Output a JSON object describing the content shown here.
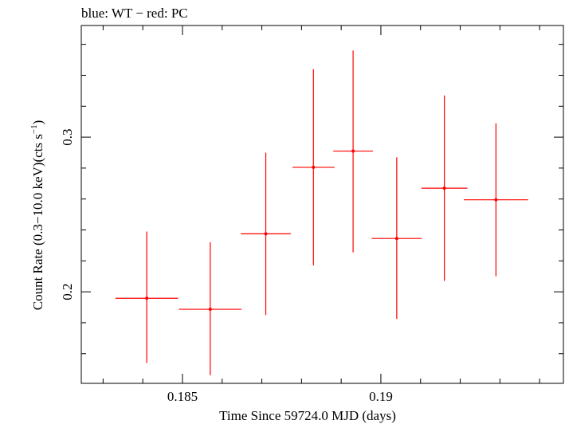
{
  "chart_data": {
    "type": "scatter",
    "title": "blue: WT − red: PC",
    "xlabel": "Time Since 59724.0 MJD (days)",
    "ylabel_main": "Count Rate (0.3−10.0 keV)(cts s",
    "ylabel_sup": "−1",
    "ylabel_close": ")",
    "xlim": [
      0.18245,
      0.1946
    ],
    "ylim": [
      0.1408,
      0.3722
    ],
    "x_ticks": [
      0.185,
      0.19
    ],
    "x_tick_labels": [
      "0.185",
      "0.19"
    ],
    "y_ticks": [
      0.2,
      0.3
    ],
    "y_tick_labels": [
      "0.2",
      "0.3"
    ],
    "grid": false,
    "series": [
      {
        "color": "#ff0000",
        "points": [
          {
            "x": 0.1841,
            "xerr": 0.00079,
            "y": 0.1958,
            "ylo": 0.154,
            "yhi": 0.239
          },
          {
            "x": 0.1857,
            "xerr": 0.00079,
            "y": 0.1887,
            "ylo": 0.146,
            "yhi": 0.232
          },
          {
            "x": 0.1871,
            "xerr": 0.00063,
            "y": 0.2375,
            "ylo": 0.185,
            "yhi": 0.29
          },
          {
            "x": 0.1883,
            "xerr": 0.00053,
            "y": 0.2805,
            "ylo": 0.217,
            "yhi": 0.344
          },
          {
            "x": 0.1893,
            "xerr": 0.0005,
            "y": 0.291,
            "ylo": 0.2255,
            "yhi": 0.356
          },
          {
            "x": 0.1904,
            "xerr": 0.00063,
            "y": 0.2345,
            "ylo": 0.1825,
            "yhi": 0.287
          },
          {
            "x": 0.1916,
            "xerr": 0.00058,
            "y": 0.267,
            "ylo": 0.207,
            "yhi": 0.327
          },
          {
            "x": 0.1929,
            "xerr": 0.00081,
            "y": 0.2595,
            "ylo": 0.21,
            "yhi": 0.309
          }
        ]
      }
    ]
  }
}
